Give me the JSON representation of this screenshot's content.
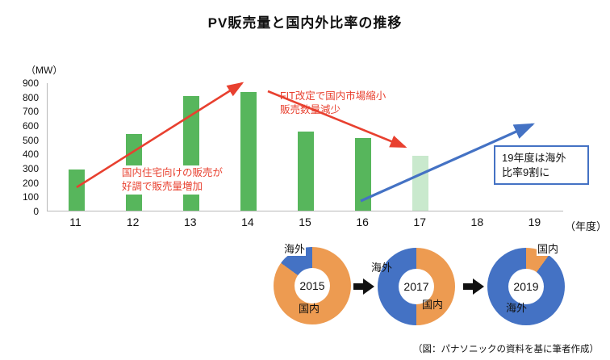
{
  "title": "PV販売量と国内外比率の推移",
  "credit": "（図：パナソニックの資料を基に筆者作成）",
  "colors": {
    "red": "#E8402F",
    "blue": "#4472C4",
    "orange": "#ED9B51",
    "bar_green": "#57B65C",
    "bar_green_light": "#C9E9CD"
  },
  "annotations": {
    "rise": "国内住宅向けの販売が\n好調で販売量増加",
    "fall": "FIT改定で国内市場縮小\n販売数量減少",
    "overseas_box": "19年度は海外\n比率9割に"
  },
  "chart_data": [
    {
      "type": "bar",
      "title": "PV販売量と国内外比率の推移",
      "unit": "（MW）",
      "xlabel_suffix": "（年度）",
      "categories": [
        "11",
        "12",
        "13",
        "14",
        "15",
        "16",
        "17",
        "18",
        "19"
      ],
      "values": [
        290,
        540,
        810,
        840,
        560,
        510,
        390,
        null,
        null
      ],
      "highlight_index": 6,
      "ylim": [
        0,
        900
      ],
      "yticks": [
        0,
        100,
        200,
        300,
        400,
        500,
        600,
        700,
        800,
        900
      ],
      "grid": false,
      "legend": false
    },
    {
      "type": "pie",
      "year": "2015",
      "slices": [
        {
          "label": "国内",
          "value": 85,
          "color": "#ED9B51"
        },
        {
          "label": "海外",
          "value": 15,
          "color": "#4472C4"
        }
      ]
    },
    {
      "type": "pie",
      "year": "2017",
      "slices": [
        {
          "label": "国内",
          "value": 50,
          "color": "#ED9B51"
        },
        {
          "label": "海外",
          "value": 50,
          "color": "#4472C4"
        }
      ]
    },
    {
      "type": "pie",
      "year": "2019",
      "slices": [
        {
          "label": "国内",
          "value": 10,
          "color": "#ED9B51"
        },
        {
          "label": "海外",
          "value": 90,
          "color": "#4472C4"
        }
      ]
    }
  ]
}
